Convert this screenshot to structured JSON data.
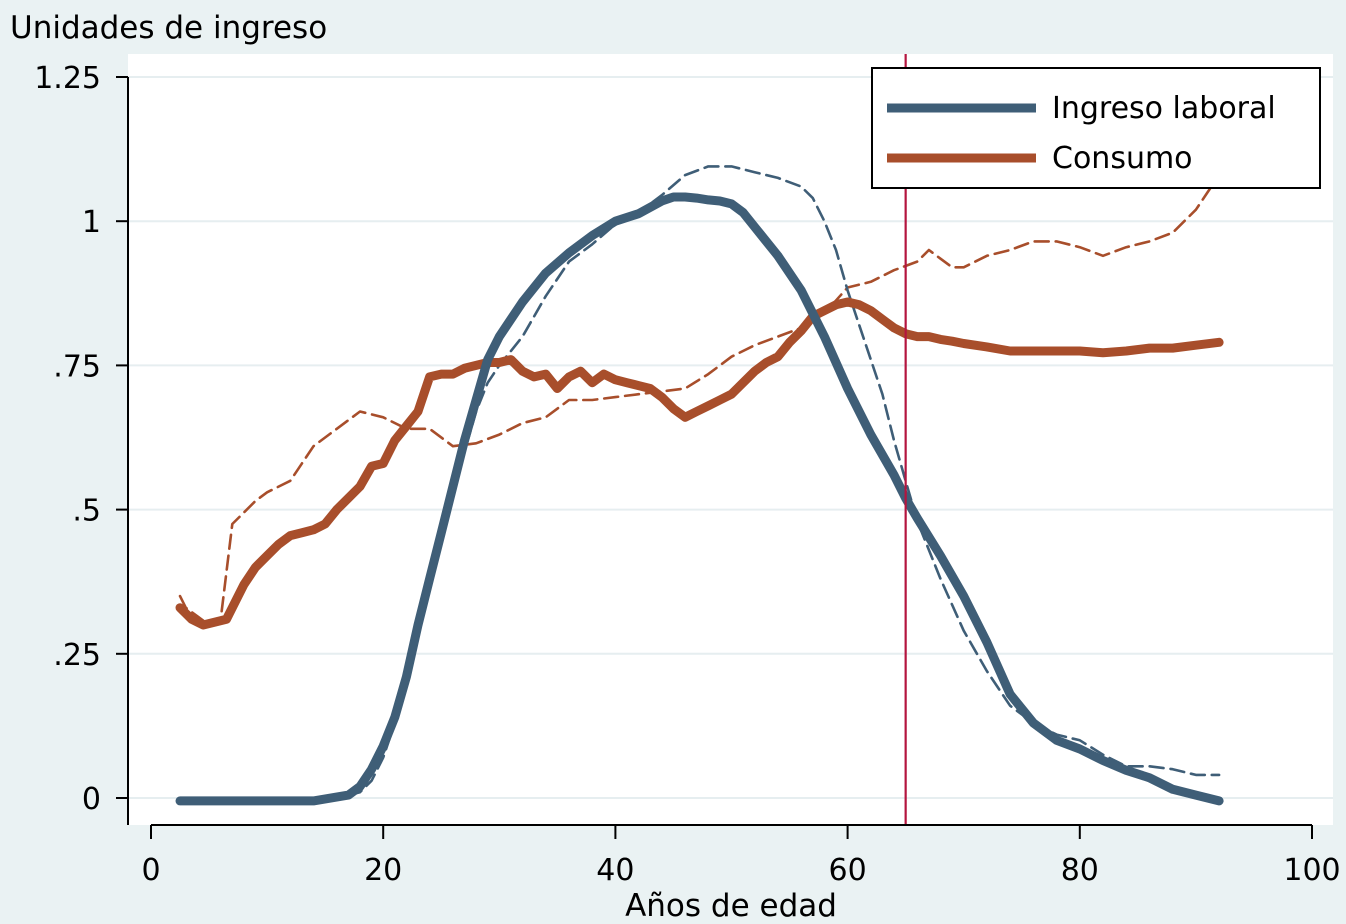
{
  "chart_data": {
    "type": "line",
    "ylabel": "Unidades de ingreso",
    "xlabel": "Años de edad",
    "xlim": [
      0,
      100
    ],
    "ylim": [
      0,
      1.25
    ],
    "x_ticks": [
      0,
      20,
      40,
      60,
      80,
      100
    ],
    "x_tick_labels": [
      "0",
      "20",
      "40",
      "60",
      "80",
      "100"
    ],
    "y_ticks": [
      0,
      0.25,
      0.5,
      0.75,
      1,
      1.25
    ],
    "y_tick_labels": [
      "0",
      ".25",
      ".5",
      ".75",
      "1",
      "1.25"
    ],
    "grid": true,
    "legend_position": "top-right",
    "reference_line_x": 65,
    "series": [
      {
        "name": "Ingreso laboral",
        "style": "solid",
        "color": "#3f5e77",
        "x": [
          2.5,
          10,
          14,
          17,
          18,
          19,
          20,
          21,
          22,
          23,
          24,
          25,
          26,
          27,
          28,
          29,
          30,
          32,
          34,
          36,
          38,
          40,
          42,
          44,
          45,
          46,
          47,
          48,
          49,
          50,
          51,
          52,
          54,
          56,
          58,
          60,
          62,
          64,
          65,
          66,
          68,
          70,
          72,
          74,
          76,
          78,
          80,
          82,
          84,
          86,
          88,
          90,
          92
        ],
        "values": [
          -0.005,
          -0.005,
          -0.005,
          0.005,
          0.02,
          0.05,
          0.09,
          0.14,
          0.21,
          0.3,
          0.38,
          0.46,
          0.54,
          0.62,
          0.69,
          0.76,
          0.8,
          0.86,
          0.91,
          0.945,
          0.975,
          1.0,
          1.013,
          1.035,
          1.042,
          1.042,
          1.04,
          1.037,
          1.035,
          1.03,
          1.015,
          0.99,
          0.94,
          0.88,
          0.8,
          0.71,
          0.63,
          0.56,
          0.52,
          0.485,
          0.42,
          0.35,
          0.27,
          0.18,
          0.13,
          0.1,
          0.085,
          0.065,
          0.048,
          0.035,
          0.015,
          0.005,
          -0.005
        ]
      },
      {
        "name": "Consumo",
        "style": "solid",
        "color": "#a84e2b",
        "x": [
          2.5,
          3.5,
          4.5,
          5.5,
          6.5,
          7.5,
          8,
          9,
          10,
          11,
          12,
          13,
          14,
          15,
          16,
          17,
          18,
          19,
          20,
          21,
          22,
          23,
          24,
          25,
          26,
          27,
          28,
          29,
          30,
          31,
          32,
          33,
          34,
          35,
          36,
          37,
          38,
          39,
          40,
          41,
          42,
          43,
          44,
          45,
          46,
          47,
          48,
          49,
          50,
          51,
          52,
          53,
          54,
          55,
          56,
          57,
          58,
          59,
          60,
          61,
          62,
          63,
          64,
          65,
          66,
          67,
          68,
          69,
          70,
          72,
          74,
          76,
          78,
          80,
          82,
          84,
          86,
          88,
          90,
          92
        ],
        "values": [
          0.33,
          0.31,
          0.3,
          0.305,
          0.31,
          0.35,
          0.37,
          0.4,
          0.42,
          0.44,
          0.455,
          0.46,
          0.465,
          0.475,
          0.5,
          0.52,
          0.54,
          0.575,
          0.58,
          0.62,
          0.645,
          0.67,
          0.73,
          0.735,
          0.735,
          0.745,
          0.75,
          0.755,
          0.755,
          0.76,
          0.74,
          0.73,
          0.735,
          0.71,
          0.73,
          0.74,
          0.72,
          0.735,
          0.725,
          0.72,
          0.715,
          0.71,
          0.695,
          0.675,
          0.66,
          0.67,
          0.68,
          0.69,
          0.7,
          0.72,
          0.74,
          0.755,
          0.765,
          0.79,
          0.81,
          0.835,
          0.845,
          0.855,
          0.86,
          0.855,
          0.845,
          0.83,
          0.815,
          0.805,
          0.8,
          0.8,
          0.795,
          0.792,
          0.788,
          0.782,
          0.775,
          0.775,
          0.775,
          0.775,
          0.772,
          0.775,
          0.78,
          0.78,
          0.785,
          0.79
        ]
      },
      {
        "name": "",
        "style": "dashed",
        "color": "#3f5e77",
        "x": [
          17,
          18,
          19,
          20,
          21,
          22,
          23,
          24,
          25,
          26,
          27,
          28,
          29,
          30,
          32,
          34,
          36,
          38,
          40,
          42,
          44,
          46,
          48,
          50,
          52,
          54,
          56,
          57,
          58,
          59,
          60,
          61,
          62,
          63,
          64,
          65,
          66,
          68,
          70,
          72,
          74,
          76,
          78,
          80,
          82,
          84,
          86,
          88,
          90,
          92
        ],
        "values": [
          0.005,
          0.01,
          0.03,
          0.07,
          0.13,
          0.2,
          0.29,
          0.37,
          0.45,
          0.53,
          0.6,
          0.67,
          0.72,
          0.75,
          0.8,
          0.87,
          0.93,
          0.96,
          0.995,
          1.015,
          1.045,
          1.08,
          1.095,
          1.095,
          1.085,
          1.075,
          1.06,
          1.04,
          1.0,
          0.95,
          0.88,
          0.82,
          0.76,
          0.7,
          0.62,
          0.55,
          0.48,
          0.38,
          0.29,
          0.22,
          0.16,
          0.13,
          0.11,
          0.1,
          0.075,
          0.055,
          0.055,
          0.05,
          0.04,
          0.04
        ]
      },
      {
        "name": "",
        "style": "dashed",
        "color": "#a84e2b",
        "x": [
          2.5,
          3,
          4,
          5,
          6,
          7,
          8,
          9,
          10,
          12,
          14,
          16,
          18,
          20,
          22,
          24,
          26,
          28,
          30,
          32,
          34,
          36,
          38,
          40,
          42,
          44,
          46,
          48,
          50,
          52,
          54,
          56,
          58,
          60,
          62,
          64,
          66,
          67,
          68,
          69,
          70,
          72,
          74,
          76,
          78,
          80,
          82,
          84,
          86,
          88,
          89,
          90,
          91,
          92
        ],
        "values": [
          0.35,
          0.33,
          0.315,
          0.3,
          0.31,
          0.475,
          0.495,
          0.515,
          0.53,
          0.55,
          0.61,
          0.64,
          0.67,
          0.66,
          0.64,
          0.64,
          0.61,
          0.615,
          0.63,
          0.65,
          0.66,
          0.69,
          0.69,
          0.695,
          0.7,
          0.705,
          0.71,
          0.735,
          0.765,
          0.785,
          0.8,
          0.815,
          0.84,
          0.885,
          0.895,
          0.915,
          0.93,
          0.95,
          0.935,
          0.92,
          0.92,
          0.94,
          0.95,
          0.965,
          0.965,
          0.955,
          0.94,
          0.955,
          0.965,
          0.98,
          1.0,
          1.02,
          1.05,
          1.08
        ]
      }
    ]
  },
  "colors": {
    "background": "#eaf2f3",
    "plot_area": "#ffffff",
    "grid": "#e6eef0",
    "reference_line": "#b4153f"
  }
}
